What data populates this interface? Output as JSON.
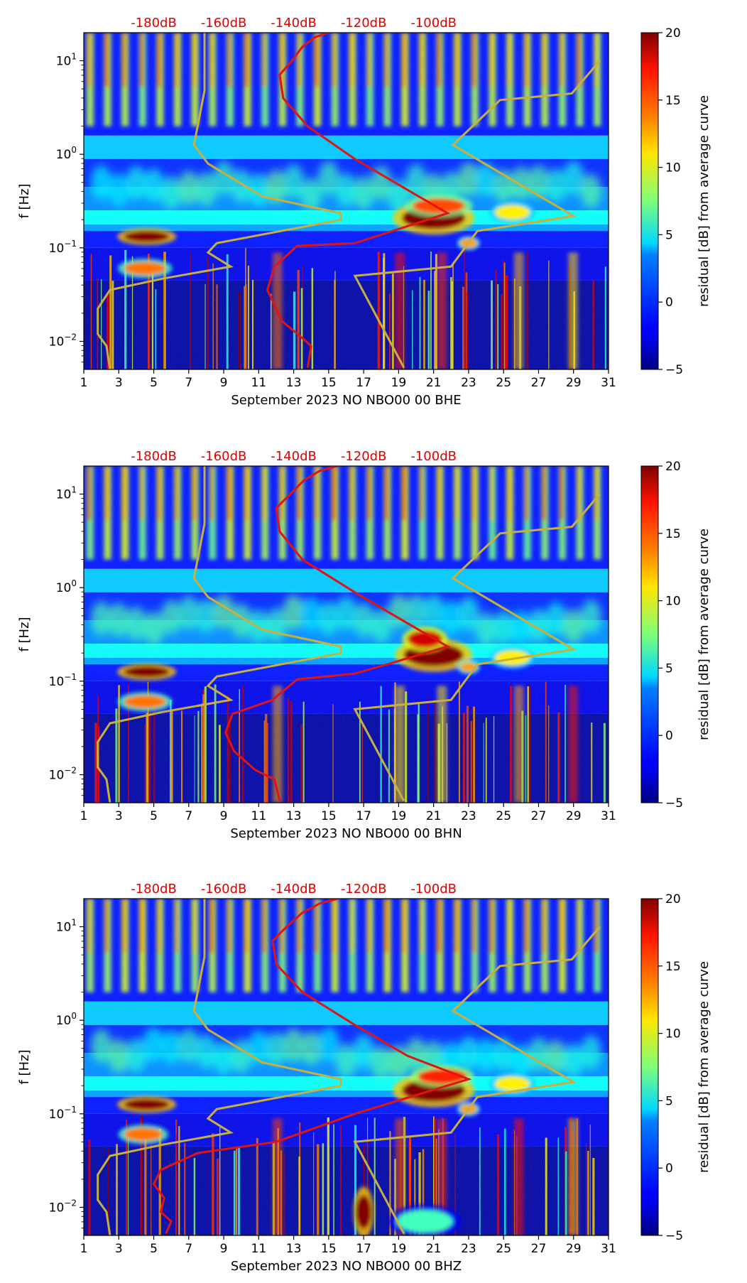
{
  "colors": {
    "model_line": "#c8b040",
    "median_line": "#e01414",
    "db_label": "#e00000"
  },
  "colorbar": {
    "label": "residual [dB] from average curve",
    "ticks": [
      "20",
      "15",
      "10",
      "5",
      "0",
      "−5"
    ],
    "range": [
      -5,
      20
    ]
  },
  "db_axis": {
    "labels": [
      "-180dB",
      "-160dB",
      "-140dB",
      "-120dB",
      "-100dB"
    ],
    "days": [
      5,
      9,
      13,
      17,
      21
    ]
  },
  "chart_data": [
    {
      "type": "heatmap",
      "title": "",
      "xlabel": "September 2023 NO NBO00 00 BHE",
      "ylabel": "f [Hz]",
      "xlim": [
        1,
        31
      ],
      "ylim_log10": [
        -2.3,
        1.3
      ],
      "x_ticks": [
        "1",
        "3",
        "5",
        "7",
        "9",
        "11",
        "13",
        "15",
        "17",
        "19",
        "21",
        "23",
        "25",
        "27",
        "29",
        "31"
      ],
      "y_ticks": [
        {
          "label_base": "10",
          "label_exp": "1",
          "log10": 1
        },
        {
          "label_base": "10",
          "label_exp": "0",
          "log10": 0
        },
        {
          "label_base": "10",
          "label_exp": "−1",
          "log10": -1
        },
        {
          "label_base": "10",
          "label_exp": "−2",
          "log10": -2
        }
      ],
      "model_curve": [
        [
          2.5,
          -2.3
        ],
        [
          2.3,
          -2.05
        ],
        [
          1.8,
          -1.92
        ],
        [
          1.8,
          -1.65
        ],
        [
          2.5,
          -1.45
        ],
        [
          5.5,
          -1.33
        ],
        [
          9.4,
          -1.2
        ],
        [
          8.1,
          -1.05
        ],
        [
          8.6,
          -0.95
        ],
        [
          15.7,
          -0.7
        ],
        [
          15.7,
          -0.63
        ],
        [
          11.2,
          -0.45
        ],
        [
          8.1,
          -0.1
        ],
        [
          7.3,
          0.1
        ],
        [
          7.9,
          0.68
        ],
        [
          7.9,
          1.3
        ]
      ],
      "new_model_curve": [
        [
          19.3,
          -2.28
        ],
        [
          16.5,
          -1.3
        ],
        [
          22.0,
          -1.2
        ],
        [
          23.5,
          -0.82
        ],
        [
          29.0,
          -0.66
        ],
        [
          22.1,
          0.1
        ],
        [
          24.8,
          0.58
        ],
        [
          28.9,
          0.65
        ],
        [
          30.5,
          1.0
        ]
      ],
      "median_curve": [
        [
          13.8,
          -2.28
        ],
        [
          14.0,
          -2.05
        ],
        [
          13.4,
          -1.95
        ],
        [
          12.3,
          -1.78
        ],
        [
          11.5,
          -1.45
        ],
        [
          11.9,
          -1.2
        ],
        [
          13.2,
          -0.98
        ],
        [
          16.5,
          -0.95
        ],
        [
          21.8,
          -0.63
        ],
        [
          19.5,
          -0.38
        ],
        [
          16.5,
          -0.05
        ],
        [
          13.8,
          0.3
        ],
        [
          12.4,
          0.6
        ],
        [
          12.2,
          0.85
        ],
        [
          12.9,
          1.0
        ],
        [
          13.5,
          1.15
        ],
        [
          14.2,
          1.25
        ],
        [
          15.0,
          1.3
        ]
      ],
      "hotspots": [
        {
          "x": 4.6,
          "ylog": -0.88,
          "rx": 1.3,
          "ry": 0.06,
          "level": 20
        },
        {
          "x": 4.5,
          "ylog": -1.22,
          "rx": 1.2,
          "ry": 0.07,
          "level": 14
        },
        {
          "x": 21.0,
          "ylog": -0.68,
          "rx": 1.8,
          "ry": 0.12,
          "level": 20
        },
        {
          "x": 21.3,
          "ylog": -0.55,
          "rx": 1.5,
          "ry": 0.08,
          "level": 15
        },
        {
          "x": 25.5,
          "ylog": -0.62,
          "rx": 1.0,
          "ry": 0.08,
          "level": 11
        },
        {
          "x": 23.0,
          "ylog": -0.95,
          "rx": 0.5,
          "ry": 0.05,
          "level": 13
        }
      ]
    },
    {
      "type": "heatmap",
      "title": "",
      "xlabel": "September 2023 NO NBO00 00 BHN",
      "ylabel": "f [Hz]",
      "xlim": [
        1,
        31
      ],
      "ylim_log10": [
        -2.3,
        1.3
      ],
      "x_ticks": [
        "1",
        "3",
        "5",
        "7",
        "9",
        "11",
        "13",
        "15",
        "17",
        "19",
        "21",
        "23",
        "25",
        "27",
        "29",
        "31"
      ],
      "y_ticks": [
        {
          "label_base": "10",
          "label_exp": "1",
          "log10": 1
        },
        {
          "label_base": "10",
          "label_exp": "0",
          "log10": 0
        },
        {
          "label_base": "10",
          "label_exp": "−1",
          "log10": -1
        },
        {
          "label_base": "10",
          "label_exp": "−2",
          "log10": -2
        }
      ],
      "model_curve": [
        [
          2.5,
          -2.3
        ],
        [
          2.3,
          -2.05
        ],
        [
          1.8,
          -1.92
        ],
        [
          1.8,
          -1.65
        ],
        [
          2.5,
          -1.45
        ],
        [
          5.5,
          -1.33
        ],
        [
          9.4,
          -1.2
        ],
        [
          8.1,
          -1.05
        ],
        [
          8.6,
          -0.95
        ],
        [
          15.7,
          -0.7
        ],
        [
          15.7,
          -0.63
        ],
        [
          11.2,
          -0.45
        ],
        [
          8.1,
          -0.1
        ],
        [
          7.3,
          0.1
        ],
        [
          7.9,
          0.68
        ],
        [
          7.9,
          1.3
        ]
      ],
      "new_model_curve": [
        [
          19.3,
          -2.28
        ],
        [
          16.5,
          -1.3
        ],
        [
          22.0,
          -1.2
        ],
        [
          23.5,
          -0.82
        ],
        [
          29.0,
          -0.66
        ],
        [
          22.1,
          0.1
        ],
        [
          24.8,
          0.58
        ],
        [
          28.9,
          0.65
        ],
        [
          30.5,
          1.0
        ]
      ],
      "median_curve": [
        [
          12.2,
          -2.28
        ],
        [
          11.9,
          -2.05
        ],
        [
          10.8,
          -1.95
        ],
        [
          9.6,
          -1.75
        ],
        [
          9.1,
          -1.55
        ],
        [
          9.5,
          -1.35
        ],
        [
          11.8,
          -1.2
        ],
        [
          13.2,
          -0.98
        ],
        [
          16.5,
          -0.92
        ],
        [
          21.8,
          -0.63
        ],
        [
          19.5,
          -0.38
        ],
        [
          16.5,
          -0.05
        ],
        [
          13.5,
          0.3
        ],
        [
          12.2,
          0.6
        ],
        [
          12.0,
          0.85
        ],
        [
          12.8,
          1.0
        ],
        [
          13.6,
          1.15
        ],
        [
          14.5,
          1.25
        ],
        [
          15.5,
          1.3
        ]
      ],
      "hotspots": [
        {
          "x": 4.6,
          "ylog": -0.9,
          "rx": 1.3,
          "ry": 0.06,
          "level": 20
        },
        {
          "x": 4.5,
          "ylog": -1.22,
          "rx": 1.2,
          "ry": 0.07,
          "level": 14
        },
        {
          "x": 21.0,
          "ylog": -0.72,
          "rx": 1.7,
          "ry": 0.12,
          "level": 20
        },
        {
          "x": 20.5,
          "ylog": -0.55,
          "rx": 1.0,
          "ry": 0.09,
          "level": 18
        },
        {
          "x": 25.5,
          "ylog": -0.75,
          "rx": 1.0,
          "ry": 0.08,
          "level": 11
        },
        {
          "x": 23.0,
          "ylog": -0.85,
          "rx": 0.5,
          "ry": 0.05,
          "level": 13
        }
      ]
    },
    {
      "type": "heatmap",
      "title": "",
      "xlabel": "September 2023 NO NBO00 00 BHZ",
      "ylabel": "f [Hz]",
      "xlim": [
        1,
        31
      ],
      "ylim_log10": [
        -2.3,
        1.3
      ],
      "x_ticks": [
        "1",
        "3",
        "5",
        "7",
        "9",
        "11",
        "13",
        "15",
        "17",
        "19",
        "21",
        "23",
        "25",
        "27",
        "29",
        "31"
      ],
      "y_ticks": [
        {
          "label_base": "10",
          "label_exp": "1",
          "log10": 1
        },
        {
          "label_base": "10",
          "label_exp": "0",
          "log10": 0
        },
        {
          "label_base": "10",
          "label_exp": "−1",
          "log10": -1
        },
        {
          "label_base": "10",
          "label_exp": "−2",
          "log10": -2
        }
      ],
      "model_curve": [
        [
          2.5,
          -2.3
        ],
        [
          2.3,
          -2.05
        ],
        [
          1.8,
          -1.92
        ],
        [
          1.8,
          -1.65
        ],
        [
          2.5,
          -1.45
        ],
        [
          5.5,
          -1.33
        ],
        [
          9.4,
          -1.2
        ],
        [
          8.1,
          -1.05
        ],
        [
          8.6,
          -0.95
        ],
        [
          15.7,
          -0.7
        ],
        [
          15.7,
          -0.63
        ],
        [
          11.2,
          -0.45
        ],
        [
          8.1,
          -0.1
        ],
        [
          7.3,
          0.1
        ],
        [
          7.9,
          0.68
        ],
        [
          7.9,
          1.3
        ]
      ],
      "new_model_curve": [
        [
          19.3,
          -2.28
        ],
        [
          16.5,
          -1.3
        ],
        [
          22.0,
          -1.2
        ],
        [
          23.5,
          -0.82
        ],
        [
          29.0,
          -0.66
        ],
        [
          22.1,
          0.1
        ],
        [
          24.8,
          0.58
        ],
        [
          28.9,
          0.65
        ],
        [
          30.5,
          1.0
        ]
      ],
      "median_curve": [
        [
          5.7,
          -2.28
        ],
        [
          6.0,
          -2.15
        ],
        [
          5.4,
          -2.05
        ],
        [
          5.6,
          -1.9
        ],
        [
          5.0,
          -1.75
        ],
        [
          5.4,
          -1.6
        ],
        [
          7.5,
          -1.42
        ],
        [
          12.0,
          -1.3
        ],
        [
          16.5,
          -1.0
        ],
        [
          23.0,
          -0.63
        ],
        [
          19.5,
          -0.38
        ],
        [
          16.5,
          -0.05
        ],
        [
          13.5,
          0.3
        ],
        [
          12.0,
          0.6
        ],
        [
          11.8,
          0.85
        ],
        [
          12.6,
          1.0
        ],
        [
          13.5,
          1.15
        ],
        [
          14.5,
          1.25
        ],
        [
          15.5,
          1.3
        ]
      ],
      "hotspots": [
        {
          "x": 4.6,
          "ylog": -0.9,
          "rx": 1.3,
          "ry": 0.06,
          "level": 20
        },
        {
          "x": 4.4,
          "ylog": -1.22,
          "rx": 1.1,
          "ry": 0.07,
          "level": 14
        },
        {
          "x": 21.0,
          "ylog": -0.75,
          "rx": 1.8,
          "ry": 0.12,
          "level": 20
        },
        {
          "x": 21.5,
          "ylog": -0.6,
          "rx": 1.4,
          "ry": 0.08,
          "level": 16
        },
        {
          "x": 25.5,
          "ylog": -0.68,
          "rx": 1.0,
          "ry": 0.08,
          "level": 11
        },
        {
          "x": 23.0,
          "ylog": -0.95,
          "rx": 0.5,
          "ry": 0.05,
          "level": 13
        },
        {
          "x": 17.0,
          "ylog": -2.05,
          "rx": 0.45,
          "ry": 0.18,
          "level": 20
        },
        {
          "x": 20.5,
          "ylog": -2.15,
          "rx": 1.6,
          "ry": 0.12,
          "level": 6
        }
      ]
    }
  ]
}
